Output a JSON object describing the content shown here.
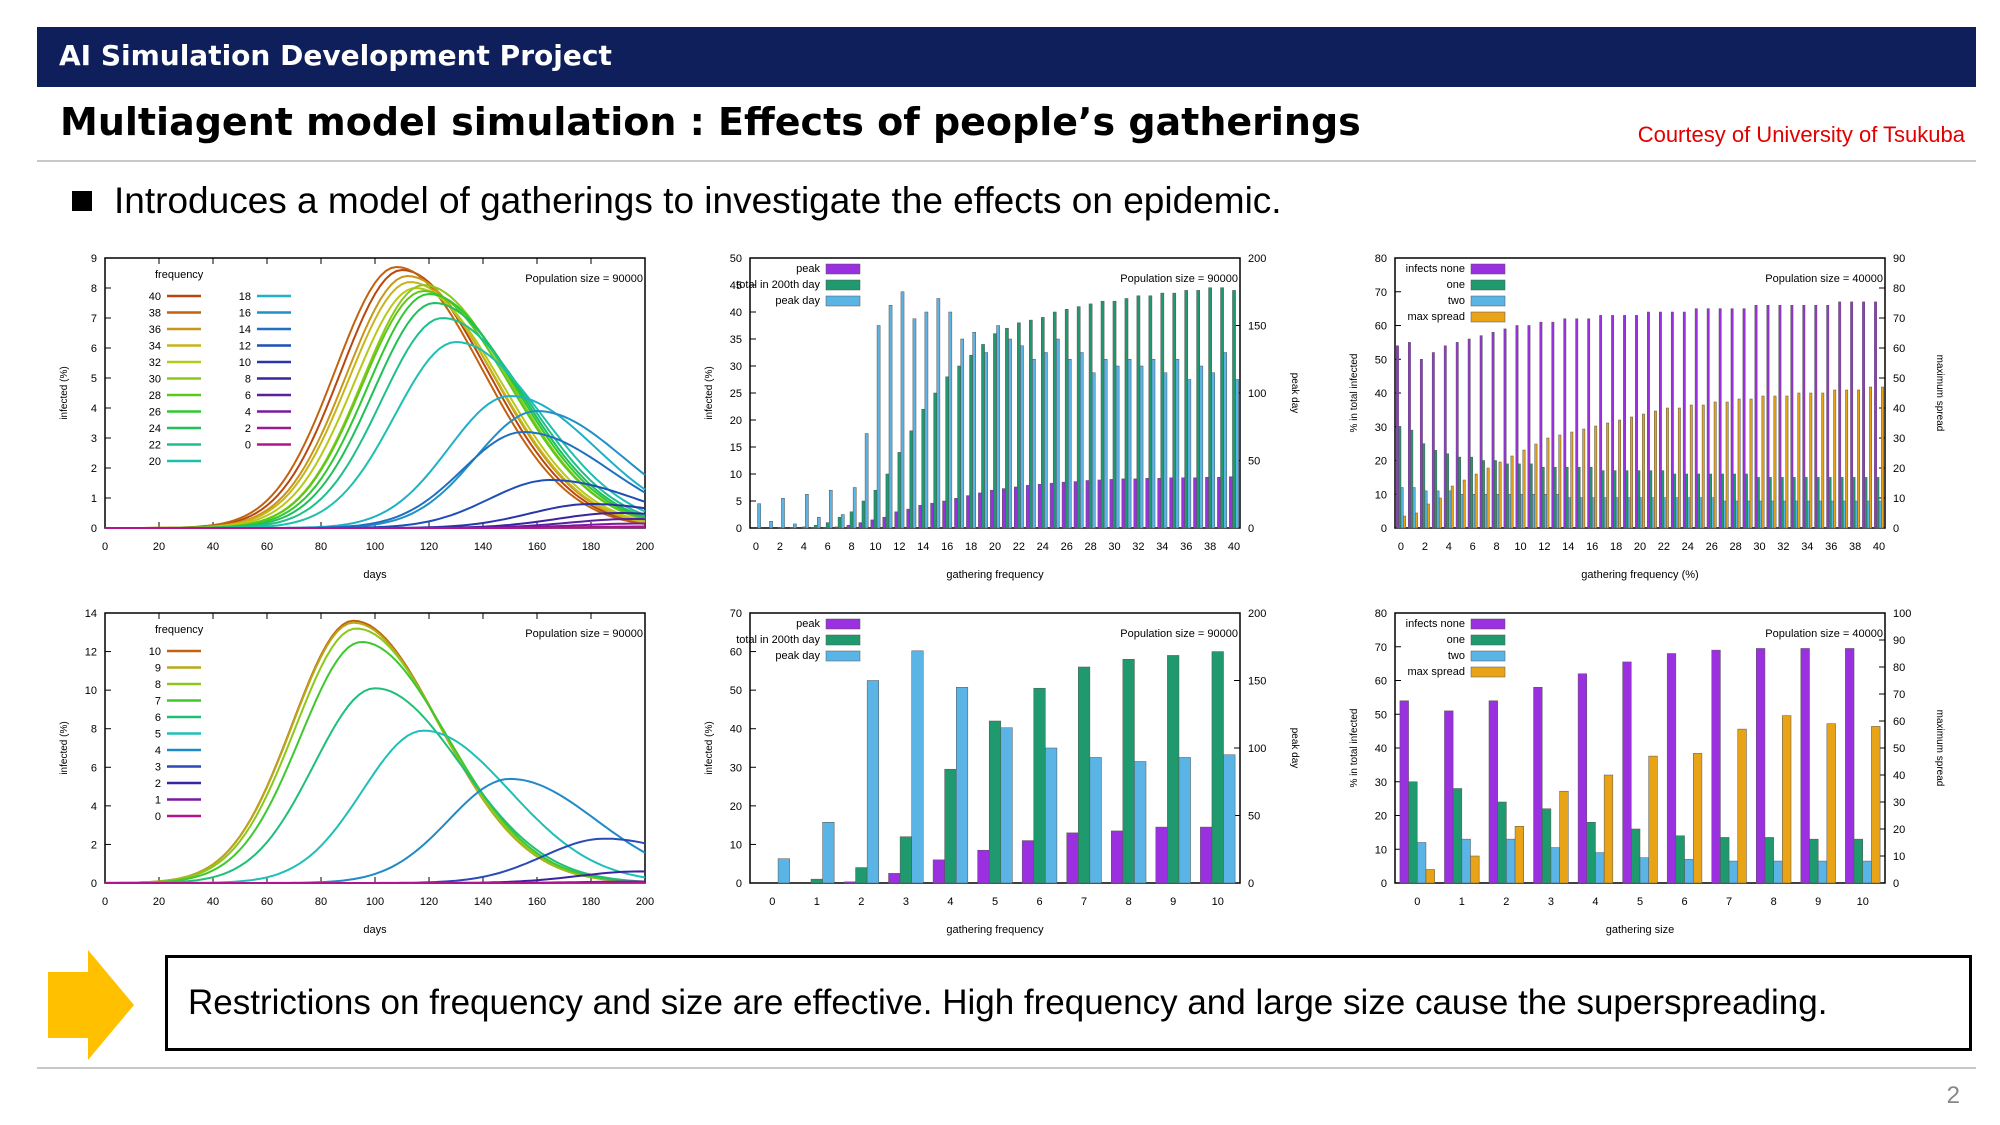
{
  "header": {
    "title": "AI Simulation Development Project"
  },
  "slide": {
    "title": "Multiagent model simulation : Effects of people’s gatherings",
    "courtesy": "Courtesy of University of Tsukuba",
    "bullet": "Introduces a model of gatherings to investigate the effects on epidemic.",
    "conclusion": "Restrictions on frequency and size are effective. High frequency and large size cause the superspreading.",
    "page_number": "2"
  },
  "colors": {
    "header_bg": "#0f1f5c",
    "courtesy": "#e00000",
    "arrow": "#ffc000",
    "peak": "#9b30e0",
    "total": "#1f9a6f",
    "peakday": "#5ab4e6",
    "maxspread": "#e8a317"
  },
  "chart_data": [
    {
      "type": "line",
      "title": "",
      "xlabel": "days",
      "ylabel": "infected (%)",
      "annotation": "Population size = 90000",
      "legend_title": "frequency",
      "xlim": [
        0,
        200
      ],
      "ylim": [
        0,
        9
      ],
      "xticks": [
        "0",
        "20",
        "40",
        "60",
        "80",
        "100",
        "120",
        "140",
        "160",
        "180",
        "200"
      ],
      "yticks": [
        "0",
        "1",
        "2",
        "3",
        "4",
        "5",
        "6",
        "7",
        "8",
        "9"
      ],
      "series": [
        {
          "name": "40",
          "color": "#b8460e",
          "peak_day": 110,
          "peak": 8.6
        },
        {
          "name": "38",
          "color": "#c2620f",
          "peak_day": 108,
          "peak": 8.7
        },
        {
          "name": "36",
          "color": "#c8961a",
          "peak_day": 112,
          "peak": 8.4
        },
        {
          "name": "34",
          "color": "#c8b41a",
          "peak_day": 113,
          "peak": 8.2
        },
        {
          "name": "32",
          "color": "#b8c81a",
          "peak_day": 115,
          "peak": 8.0
        },
        {
          "name": "30",
          "color": "#8cc81a",
          "peak_day": 118,
          "peak": 8.1
        },
        {
          "name": "28",
          "color": "#5ec81a",
          "peak_day": 118,
          "peak": 7.9
        },
        {
          "name": "26",
          "color": "#2fc82f",
          "peak_day": 120,
          "peak": 7.8
        },
        {
          "name": "24",
          "color": "#1fbf5a",
          "peak_day": 122,
          "peak": 7.5
        },
        {
          "name": "22",
          "color": "#1fbf8a",
          "peak_day": 125,
          "peak": 7.0
        },
        {
          "name": "20",
          "color": "#1fbfb0",
          "peak_day": 130,
          "peak": 6.2
        },
        {
          "name": "18",
          "color": "#1fb0c8",
          "peak_day": 150,
          "peak": 4.4
        },
        {
          "name": "16",
          "color": "#1f90c8",
          "peak_day": 160,
          "peak": 3.9
        },
        {
          "name": "14",
          "color": "#1f70c0",
          "peak_day": 155,
          "peak": 3.2
        },
        {
          "name": "12",
          "color": "#1f4fb8",
          "peak_day": 165,
          "peak": 1.6
        },
        {
          "name": "10",
          "color": "#2a35a8",
          "peak_day": 180,
          "peak": 0.8
        },
        {
          "name": "8",
          "color": "#3a25a0",
          "peak_day": 190,
          "peak": 0.5
        },
        {
          "name": "6",
          "color": "#5a20a0",
          "peak_day": 195,
          "peak": 0.3
        },
        {
          "name": "4",
          "color": "#7a1aa0",
          "peak_day": 198,
          "peak": 0.15
        },
        {
          "name": "2",
          "color": "#9a1a90",
          "peak_day": 200,
          "peak": 0.05
        },
        {
          "name": "0",
          "color": "#b0168a",
          "peak_day": 200,
          "peak": 0.02
        }
      ]
    },
    {
      "type": "bar",
      "xlabel": "gathering frequency",
      "ylabel": "infected (%)",
      "y2label": "peak day",
      "annotation": "Population size = 90000",
      "ylim": [
        0,
        50
      ],
      "y2lim": [
        0,
        200
      ],
      "yticks": [
        "0",
        "5",
        "10",
        "15",
        "20",
        "25",
        "30",
        "35",
        "40",
        "45",
        "50"
      ],
      "y2ticks": [
        "0",
        "50",
        "100",
        "150",
        "200"
      ],
      "categories": [
        "0",
        "1",
        "2",
        "3",
        "4",
        "5",
        "6",
        "7",
        "8",
        "9",
        "10",
        "11",
        "12",
        "13",
        "14",
        "15",
        "16",
        "17",
        "18",
        "19",
        "20",
        "21",
        "22",
        "23",
        "24",
        "25",
        "26",
        "27",
        "28",
        "29",
        "30",
        "31",
        "32",
        "33",
        "34",
        "35",
        "36",
        "37",
        "38",
        "39",
        "40"
      ],
      "xticklabels": [
        "0",
        "2",
        "4",
        "6",
        "8",
        "10",
        "12",
        "14",
        "16",
        "18",
        "20",
        "22",
        "24",
        "26",
        "28",
        "30",
        "32",
        "34",
        "36",
        "38",
        "40"
      ],
      "series": [
        {
          "name": "peak",
          "axis": "y",
          "values": [
            0,
            0,
            0,
            0,
            0,
            0.1,
            0.1,
            0.2,
            0.5,
            1,
            1.5,
            2,
            3,
            3.5,
            4.2,
            4.6,
            5,
            5.5,
            6,
            6.5,
            7,
            7.3,
            7.6,
            7.9,
            8.1,
            8.3,
            8.5,
            8.6,
            8.8,
            8.9,
            9,
            9.1,
            9.1,
            9.2,
            9.2,
            9.3,
            9.3,
            9.3,
            9.4,
            9.4,
            9.5
          ]
        },
        {
          "name": "total in 200th day",
          "axis": "y",
          "values": [
            0,
            0,
            0.1,
            0.1,
            0.2,
            0.5,
            1,
            2,
            3,
            5,
            7,
            10,
            14,
            18,
            22,
            25,
            28,
            30,
            32,
            34,
            36,
            37,
            38,
            38.5,
            39,
            40,
            40.5,
            41,
            41.5,
            42,
            42,
            42.5,
            43,
            43,
            43.5,
            43.5,
            44,
            44,
            44.5,
            44.5,
            44
          ]
        },
        {
          "name": "peak day",
          "axis": "y2",
          "values": [
            18,
            5,
            22,
            3,
            25,
            8,
            28,
            10,
            30,
            70,
            150,
            165,
            175,
            155,
            160,
            170,
            160,
            140,
            145,
            130,
            150,
            140,
            135,
            125,
            130,
            140,
            125,
            130,
            115,
            125,
            120,
            125,
            120,
            125,
            115,
            125,
            110,
            120,
            115,
            130,
            110
          ]
        }
      ]
    },
    {
      "type": "bar",
      "xlabel": "gathering frequency (%)",
      "ylabel": "% in total infected",
      "y2label": "maximum spread",
      "annotation": "Population size = 40000",
      "ylim": [
        0,
        80
      ],
      "y2lim": [
        0,
        90
      ],
      "yticks": [
        "0",
        "10",
        "20",
        "30",
        "40",
        "50",
        "60",
        "70",
        "80"
      ],
      "y2ticks": [
        "0",
        "10",
        "20",
        "30",
        "40",
        "50",
        "60",
        "70",
        "80",
        "90"
      ],
      "categories": [
        "0",
        "1",
        "2",
        "3",
        "4",
        "5",
        "6",
        "7",
        "8",
        "9",
        "10",
        "11",
        "12",
        "13",
        "14",
        "15",
        "16",
        "17",
        "18",
        "19",
        "20",
        "21",
        "22",
        "23",
        "24",
        "25",
        "26",
        "27",
        "28",
        "29",
        "30",
        "31",
        "32",
        "33",
        "34",
        "35",
        "36",
        "37",
        "38",
        "39",
        "40"
      ],
      "xticklabels": [
        "0",
        "2",
        "4",
        "6",
        "8",
        "10",
        "12",
        "14",
        "16",
        "18",
        "20",
        "22",
        "24",
        "26",
        "28",
        "30",
        "32",
        "34",
        "36",
        "38",
        "40"
      ],
      "series": [
        {
          "name": "infects none",
          "axis": "y",
          "values": [
            54,
            55,
            50,
            52,
            54,
            55,
            56,
            57,
            58,
            59,
            60,
            60,
            61,
            61,
            62,
            62,
            62,
            63,
            63,
            63,
            63,
            64,
            64,
            64,
            64,
            65,
            65,
            65,
            65,
            65,
            66,
            66,
            66,
            66,
            66,
            66,
            66,
            67,
            67,
            67,
            67
          ]
        },
        {
          "name": "one",
          "axis": "y",
          "values": [
            30,
            29,
            25,
            23,
            22,
            21,
            21,
            20,
            20,
            19,
            19,
            19,
            18,
            18,
            18,
            18,
            18,
            17,
            17,
            17,
            17,
            17,
            17,
            16,
            16,
            16,
            16,
            16,
            16,
            16,
            15,
            15,
            15,
            15,
            15,
            15,
            15,
            15,
            15,
            15,
            15
          ]
        },
        {
          "name": "two",
          "axis": "y",
          "values": [
            12,
            12,
            11,
            11,
            11,
            10,
            10,
            10,
            10,
            10,
            10,
            10,
            10,
            10,
            9,
            9,
            9,
            9,
            9,
            9,
            9,
            9,
            9,
            9,
            9,
            9,
            9,
            8,
            8,
            8,
            8,
            8,
            8,
            8,
            8,
            8,
            8,
            8,
            8,
            8,
            8
          ]
        },
        {
          "name": "max spread",
          "axis": "y2",
          "values": [
            4,
            5,
            8,
            10,
            14,
            16,
            18,
            20,
            22,
            24,
            26,
            28,
            30,
            31,
            32,
            33,
            34,
            35,
            36,
            37,
            38,
            39,
            40,
            40,
            41,
            41,
            42,
            42,
            43,
            43,
            44,
            44,
            44,
            45,
            45,
            45,
            46,
            46,
            46,
            47,
            47
          ]
        }
      ]
    },
    {
      "type": "line",
      "xlabel": "days",
      "ylabel": "infected (%)",
      "annotation": "Population size = 90000",
      "legend_title": "frequency",
      "xlim": [
        0,
        200
      ],
      "ylim": [
        0,
        14
      ],
      "xticks": [
        "0",
        "20",
        "40",
        "60",
        "80",
        "100",
        "120",
        "140",
        "160",
        "180",
        "200"
      ],
      "yticks": [
        "0",
        "2",
        "4",
        "6",
        "8",
        "10",
        "12",
        "14"
      ],
      "series": [
        {
          "name": "10",
          "color": "#c2620f",
          "peak_day": 92,
          "peak": 13.6
        },
        {
          "name": "9",
          "color": "#b8a81a",
          "peak_day": 92,
          "peak": 13.5
        },
        {
          "name": "8",
          "color": "#8cc81a",
          "peak_day": 93,
          "peak": 13.2
        },
        {
          "name": "7",
          "color": "#3ec82f",
          "peak_day": 95,
          "peak": 12.5
        },
        {
          "name": "6",
          "color": "#1fbf7a",
          "peak_day": 100,
          "peak": 10.1
        },
        {
          "name": "5",
          "color": "#1fbfb8",
          "peak_day": 118,
          "peak": 7.9
        },
        {
          "name": "4",
          "color": "#1f8ac8",
          "peak_day": 150,
          "peak": 5.4
        },
        {
          "name": "3",
          "color": "#2a4ab8",
          "peak_day": 185,
          "peak": 2.3
        },
        {
          "name": "2",
          "color": "#3a25a0",
          "peak_day": 198,
          "peak": 0.6
        },
        {
          "name": "1",
          "color": "#7a1aa0",
          "peak_day": 200,
          "peak": 0.08
        },
        {
          "name": "0",
          "color": "#b0168a",
          "peak_day": 200,
          "peak": 0.02
        }
      ]
    },
    {
      "type": "bar",
      "xlabel": "gathering frequency",
      "ylabel": "infected (%)",
      "y2label": "peak day",
      "annotation": "Population size = 90000",
      "ylim": [
        0,
        70
      ],
      "y2lim": [
        0,
        200
      ],
      "yticks": [
        "0",
        "10",
        "20",
        "30",
        "40",
        "50",
        "60",
        "70"
      ],
      "y2ticks": [
        "0",
        "50",
        "100",
        "150",
        "200"
      ],
      "categories": [
        "0",
        "1",
        "2",
        "3",
        "4",
        "5",
        "6",
        "7",
        "8",
        "9",
        "10"
      ],
      "xticklabels": [
        "0",
        "1",
        "2",
        "3",
        "4",
        "5",
        "6",
        "7",
        "8",
        "9",
        "10"
      ],
      "series": [
        {
          "name": "peak",
          "axis": "y",
          "values": [
            0,
            0,
            0.3,
            2.5,
            6,
            8.5,
            11,
            13,
            13.5,
            14.5,
            14.5
          ]
        },
        {
          "name": "total in 200th day",
          "axis": "y",
          "values": [
            0,
            1,
            4,
            12,
            29.5,
            42,
            50.5,
            56,
            58,
            59,
            60
          ]
        },
        {
          "name": "peak day",
          "axis": "y2",
          "values": [
            18,
            45,
            150,
            172,
            145,
            115,
            100,
            93,
            90,
            93,
            95
          ]
        }
      ]
    },
    {
      "type": "bar",
      "xlabel": "gathering size",
      "ylabel": "% in total infected",
      "y2label": "maximum spread",
      "annotation": "Population size = 40000",
      "ylim": [
        0,
        80
      ],
      "y2lim": [
        0,
        100
      ],
      "yticks": [
        "0",
        "10",
        "20",
        "30",
        "40",
        "50",
        "60",
        "70",
        "80"
      ],
      "y2ticks": [
        "0",
        "10",
        "20",
        "30",
        "40",
        "50",
        "60",
        "70",
        "80",
        "90",
        "100"
      ],
      "categories": [
        "0",
        "1",
        "2",
        "3",
        "4",
        "5",
        "6",
        "7",
        "8",
        "9",
        "10"
      ],
      "xticklabels": [
        "0",
        "1",
        "2",
        "3",
        "4",
        "5",
        "6",
        "7",
        "8",
        "9",
        "10"
      ],
      "series": [
        {
          "name": "infects none",
          "axis": "y",
          "values": [
            54,
            51,
            54,
            58,
            62,
            65.5,
            68,
            69,
            69.5,
            69.5,
            69.5
          ]
        },
        {
          "name": "one",
          "axis": "y",
          "values": [
            30,
            28,
            24,
            22,
            18,
            16,
            14,
            13.5,
            13.5,
            13,
            13
          ]
        },
        {
          "name": "two",
          "axis": "y",
          "values": [
            12,
            13,
            13,
            10.5,
            9,
            7.5,
            7,
            6.5,
            6.5,
            6.5,
            6.5
          ]
        },
        {
          "name": "max spread",
          "axis": "y2",
          "values": [
            5,
            10,
            21,
            34,
            40,
            47,
            48,
            57,
            62,
            59,
            58
          ]
        }
      ]
    }
  ]
}
